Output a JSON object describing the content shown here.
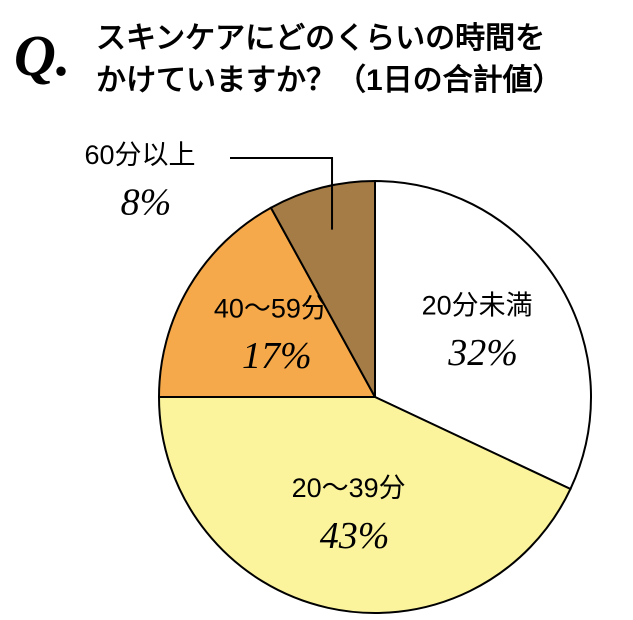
{
  "badge": "Q.",
  "chart_data": {
    "type": "pie",
    "title": "スキンケアにどのくらいの時間をかけていますか？（1日の合計値）",
    "categories": [
      "20分未満",
      "20～39分",
      "40～59分",
      "60分以上"
    ],
    "values": [
      32,
      43,
      17,
      8
    ],
    "value_labels": [
      "32%",
      "43%",
      "17%",
      "8%"
    ],
    "colors": [
      "#ffffff",
      "#fbf49c",
      "#f5a94a",
      "#a57c45"
    ]
  }
}
